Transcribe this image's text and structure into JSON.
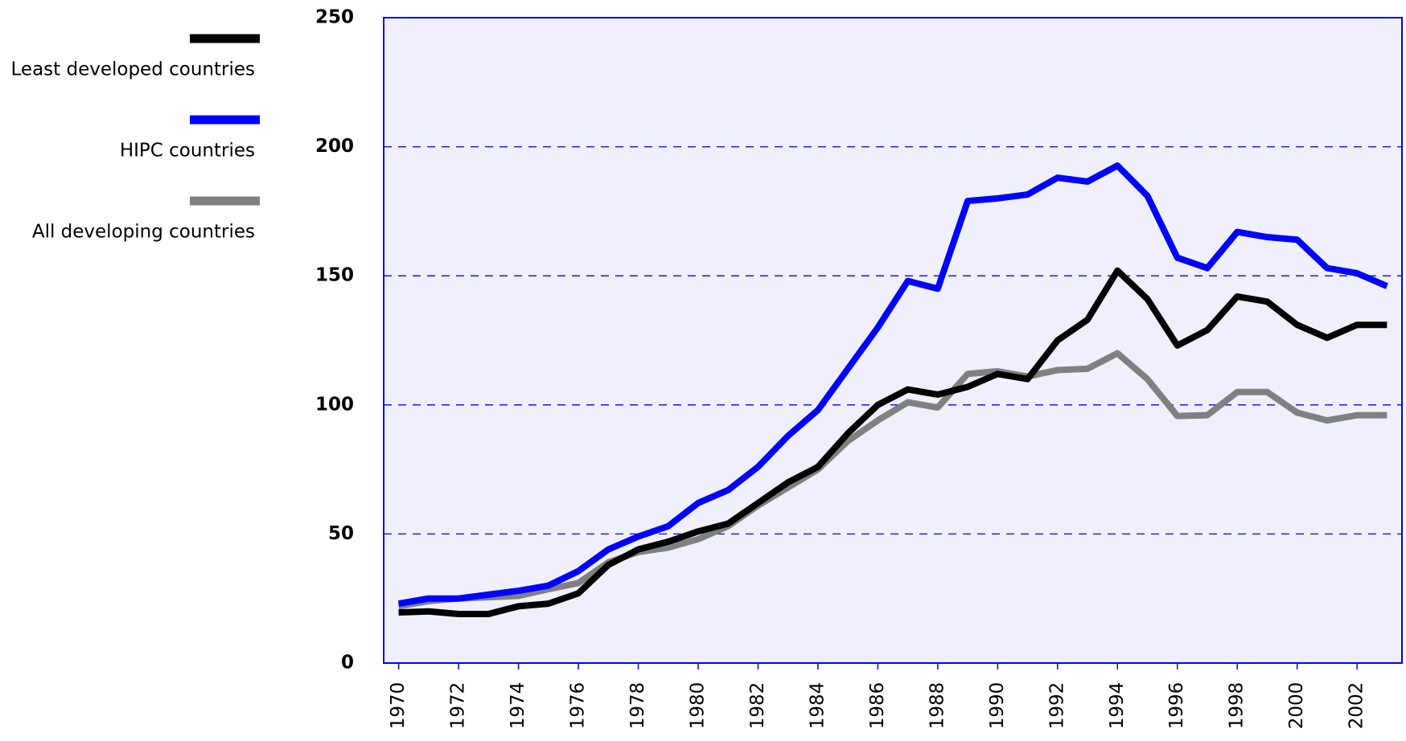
{
  "chart_data": {
    "type": "line",
    "x": [
      1970,
      1971,
      1972,
      1973,
      1974,
      1975,
      1976,
      1977,
      1978,
      1979,
      1980,
      1981,
      1982,
      1983,
      1984,
      1985,
      1986,
      1987,
      1988,
      1989,
      1990,
      1991,
      1992,
      1993,
      1994,
      1995,
      1996,
      1997,
      1998,
      1999,
      2000,
      2001,
      2002,
      2003
    ],
    "series": [
      {
        "name": "Least developed countries",
        "color": "#000000",
        "values": [
          19.6,
          20,
          19,
          19,
          22,
          23,
          27,
          38,
          44,
          47,
          51,
          54,
          62,
          70,
          76,
          89,
          100,
          106,
          104,
          107,
          112,
          110,
          125,
          133,
          152,
          141,
          123,
          129,
          142,
          140,
          131,
          126,
          131,
          131
        ]
      },
      {
        "name": "HIPC countries",
        "color": "#0000ff",
        "values": [
          23,
          25,
          25,
          26.5,
          28,
          30,
          35.6,
          44,
          49,
          53,
          62,
          67,
          76,
          88,
          98,
          114,
          130,
          148,
          145,
          179,
          180,
          181.5,
          188,
          186.5,
          192.7,
          181,
          157,
          153,
          167,
          165,
          164,
          153,
          151,
          146
        ]
      },
      {
        "name": "All developing countries",
        "color": "#808080",
        "values": [
          22,
          24,
          25,
          25.5,
          26,
          28.6,
          31,
          39,
          43,
          44.7,
          48,
          53,
          61,
          68,
          75,
          86,
          94,
          101,
          99,
          112,
          113,
          111,
          113.5,
          114,
          120,
          110,
          95.7,
          96,
          105,
          105,
          97,
          94,
          96,
          96
        ]
      }
    ],
    "xlim": [
      1969.5,
      2003.5
    ],
    "xticks": [
      1970,
      1972,
      1974,
      1976,
      1978,
      1980,
      1982,
      1984,
      1986,
      1988,
      1990,
      1992,
      1994,
      1996,
      1998,
      2000,
      2002
    ],
    "ylim": [
      0,
      250
    ],
    "yticks": [
      0,
      50,
      100,
      150,
      200,
      250
    ],
    "grid": true,
    "legend": "left"
  }
}
